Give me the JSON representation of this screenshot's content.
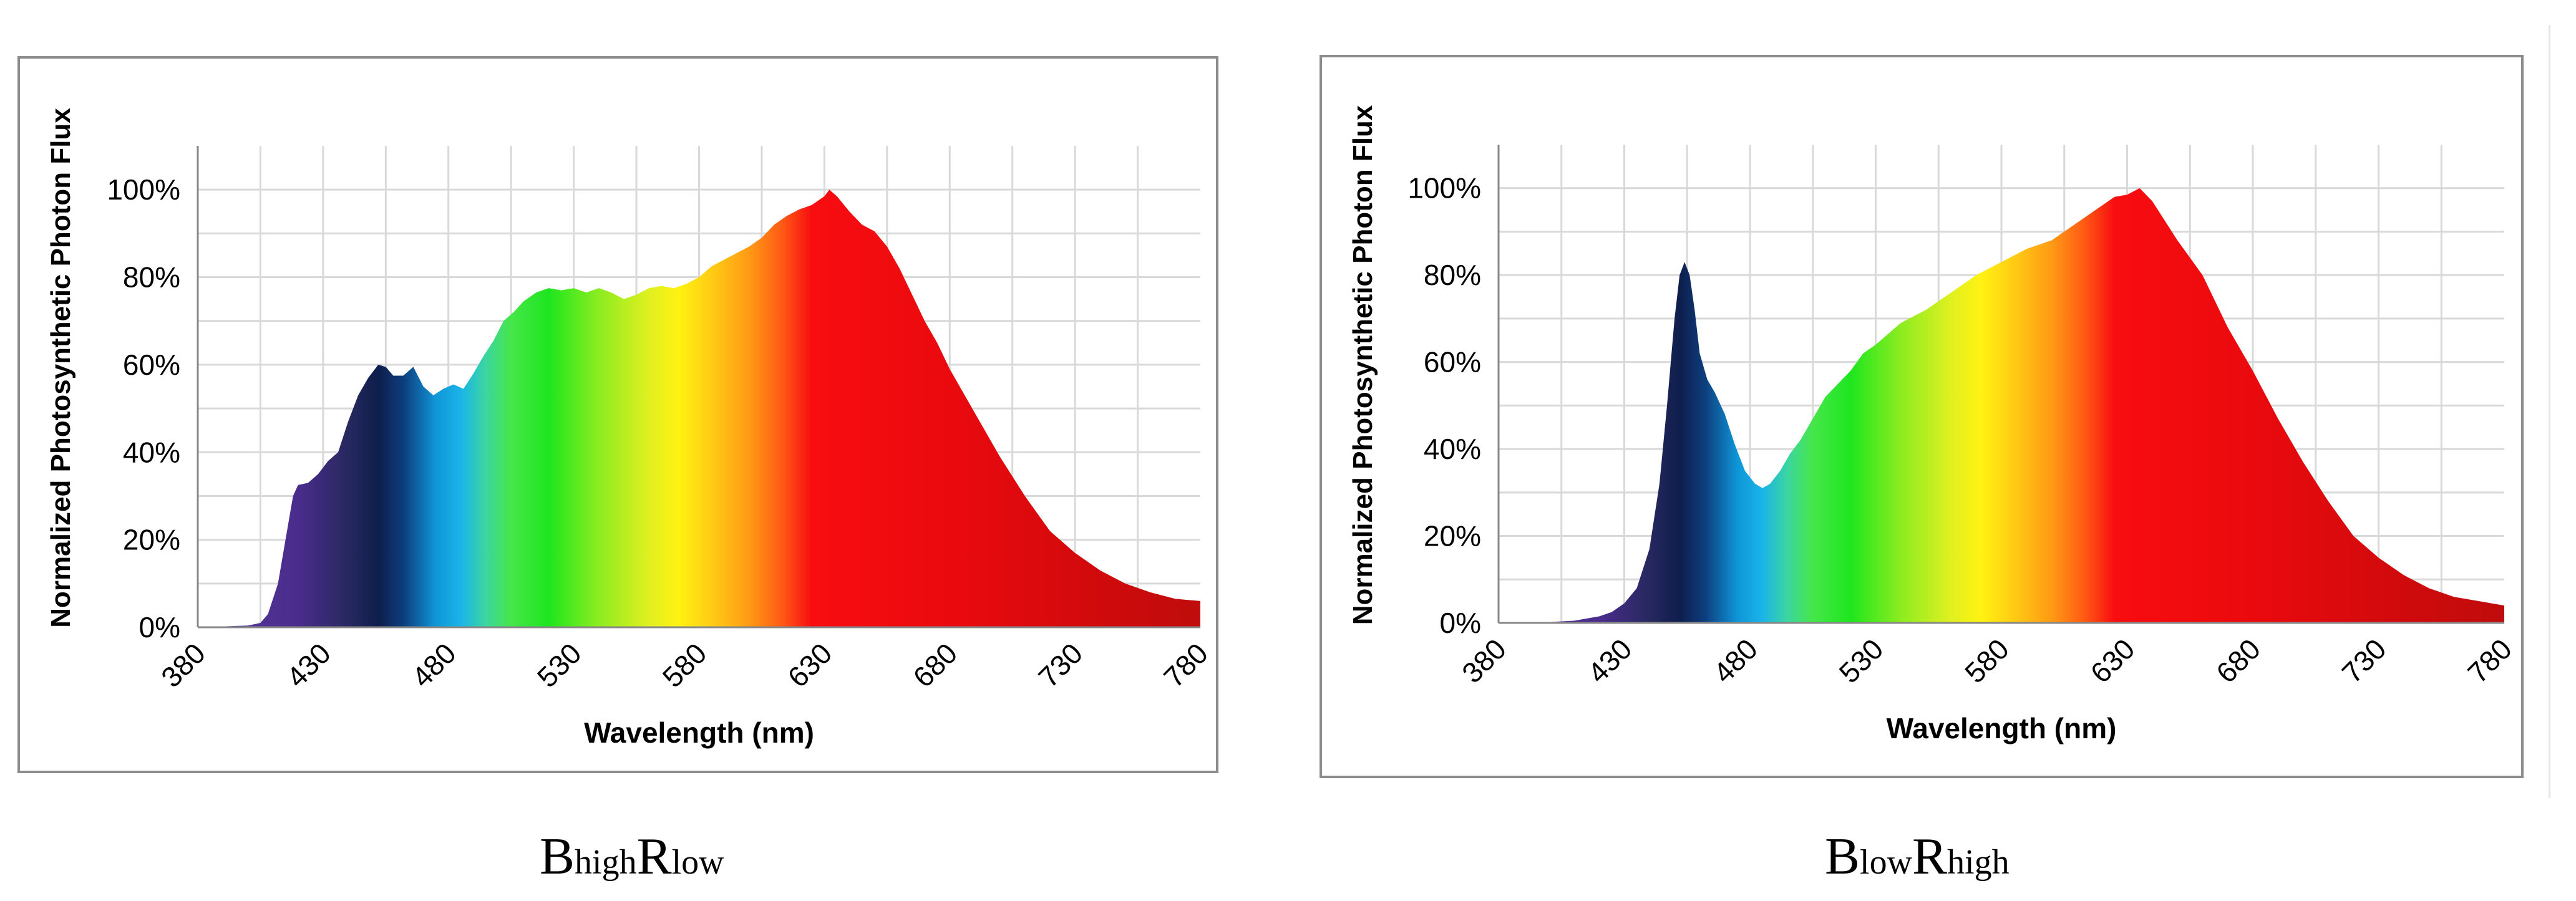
{
  "chart_data": [
    {
      "type": "area",
      "xlabel": "Wavelength (nm)",
      "ylabel": "Normalized Photosynthetic Photon Flux",
      "xlim": [
        380,
        780
      ],
      "ylim": [
        0,
        1.1
      ],
      "x_ticks": [
        "380",
        "430",
        "480",
        "530",
        "580",
        "630",
        "680",
        "730",
        "780"
      ],
      "y_ticks": [
        "0%",
        "20%",
        "40%",
        "60%",
        "80%",
        "100%"
      ],
      "grid": true,
      "fill": "visible-spectrum color gradient",
      "caption": {
        "big1": "B",
        "small1": "high",
        "big2": "R",
        "small2": "low"
      },
      "series": [
        {
          "x": [
            380,
            390,
            400,
            405,
            408,
            412,
            415,
            418,
            420,
            424,
            428,
            432,
            436,
            440,
            444,
            448,
            452,
            455,
            458,
            462,
            466,
            470,
            474,
            478,
            482,
            486,
            490,
            494,
            498,
            502,
            506,
            510,
            515,
            520,
            525,
            530,
            535,
            540,
            545,
            550,
            555,
            560,
            565,
            570,
            575,
            580,
            585,
            590,
            595,
            600,
            605,
            610,
            615,
            620,
            625,
            630,
            632,
            635,
            640,
            645,
            650,
            655,
            660,
            665,
            670,
            675,
            680,
            690,
            700,
            710,
            720,
            730,
            740,
            750,
            760,
            770,
            780
          ],
          "y": [
            0.0,
            0.002,
            0.004,
            0.01,
            0.03,
            0.1,
            0.2,
            0.3,
            0.325,
            0.33,
            0.35,
            0.38,
            0.4,
            0.47,
            0.53,
            0.57,
            0.6,
            0.595,
            0.575,
            0.575,
            0.595,
            0.55,
            0.53,
            0.545,
            0.555,
            0.545,
            0.58,
            0.62,
            0.655,
            0.7,
            0.72,
            0.745,
            0.765,
            0.775,
            0.77,
            0.775,
            0.765,
            0.775,
            0.765,
            0.75,
            0.76,
            0.775,
            0.78,
            0.775,
            0.785,
            0.8,
            0.825,
            0.84,
            0.855,
            0.87,
            0.89,
            0.92,
            0.94,
            0.955,
            0.965,
            0.985,
            1.0,
            0.985,
            0.95,
            0.92,
            0.905,
            0.87,
            0.82,
            0.76,
            0.7,
            0.65,
            0.59,
            0.49,
            0.39,
            0.3,
            0.22,
            0.17,
            0.13,
            0.1,
            0.08,
            0.065,
            0.06
          ]
        }
      ]
    },
    {
      "type": "area",
      "xlabel": "Wavelength (nm)",
      "ylabel": "Normalized Photosynthetic Photon Flux",
      "xlim": [
        380,
        780
      ],
      "ylim": [
        0,
        1.1
      ],
      "x_ticks": [
        "380",
        "430",
        "480",
        "530",
        "580",
        "630",
        "680",
        "730",
        "780"
      ],
      "y_ticks": [
        "0%",
        "20%",
        "40%",
        "60%",
        "80%",
        "100%"
      ],
      "grid": true,
      "fill": "visible-spectrum color gradient",
      "caption": {
        "big1": "B",
        "small1": "low",
        "big2": "R",
        "small2": "high"
      },
      "series": [
        {
          "x": [
            380,
            400,
            410,
            420,
            425,
            430,
            435,
            440,
            444,
            447,
            450,
            452,
            454,
            456,
            458,
            460,
            463,
            466,
            470,
            474,
            478,
            482,
            485,
            488,
            492,
            496,
            500,
            505,
            510,
            515,
            520,
            525,
            530,
            540,
            550,
            560,
            570,
            580,
            590,
            600,
            610,
            620,
            625,
            630,
            635,
            640,
            650,
            660,
            670,
            680,
            690,
            700,
            710,
            720,
            730,
            740,
            750,
            760,
            770,
            780
          ],
          "y": [
            0.0,
            0.002,
            0.005,
            0.015,
            0.025,
            0.045,
            0.08,
            0.17,
            0.32,
            0.5,
            0.7,
            0.8,
            0.83,
            0.8,
            0.72,
            0.62,
            0.56,
            0.53,
            0.48,
            0.41,
            0.35,
            0.32,
            0.31,
            0.32,
            0.35,
            0.39,
            0.42,
            0.47,
            0.52,
            0.55,
            0.58,
            0.62,
            0.64,
            0.69,
            0.72,
            0.76,
            0.8,
            0.83,
            0.86,
            0.88,
            0.92,
            0.96,
            0.98,
            0.985,
            1.0,
            0.97,
            0.88,
            0.8,
            0.68,
            0.58,
            0.47,
            0.37,
            0.28,
            0.2,
            0.15,
            0.11,
            0.08,
            0.06,
            0.05,
            0.04
          ]
        }
      ]
    }
  ],
  "spectrum_colors": [
    {
      "nm": 380,
      "color": "#5a3ca0"
    },
    {
      "nm": 420,
      "color": "#4a2c8c"
    },
    {
      "nm": 440,
      "color": "#27285f"
    },
    {
      "nm": 452,
      "color": "#0e1e4c"
    },
    {
      "nm": 462,
      "color": "#0d3d7d"
    },
    {
      "nm": 475,
      "color": "#0f96d8"
    },
    {
      "nm": 485,
      "color": "#1ab4e8"
    },
    {
      "nm": 495,
      "color": "#3cd6a0"
    },
    {
      "nm": 505,
      "color": "#46e64a"
    },
    {
      "nm": 520,
      "color": "#1ee61e"
    },
    {
      "nm": 540,
      "color": "#8cec20"
    },
    {
      "nm": 560,
      "color": "#e0f020"
    },
    {
      "nm": 572,
      "color": "#fff212"
    },
    {
      "nm": 585,
      "color": "#ffcc14"
    },
    {
      "nm": 600,
      "color": "#ff9a14"
    },
    {
      "nm": 613,
      "color": "#ff5a14"
    },
    {
      "nm": 625,
      "color": "#f80d10"
    },
    {
      "nm": 680,
      "color": "#ea0a0e"
    },
    {
      "nm": 740,
      "color": "#d00a0c"
    },
    {
      "nm": 780,
      "color": "#bf0c0c"
    }
  ],
  "grid_color": "#d9d9d9",
  "axis_color": "#888888"
}
